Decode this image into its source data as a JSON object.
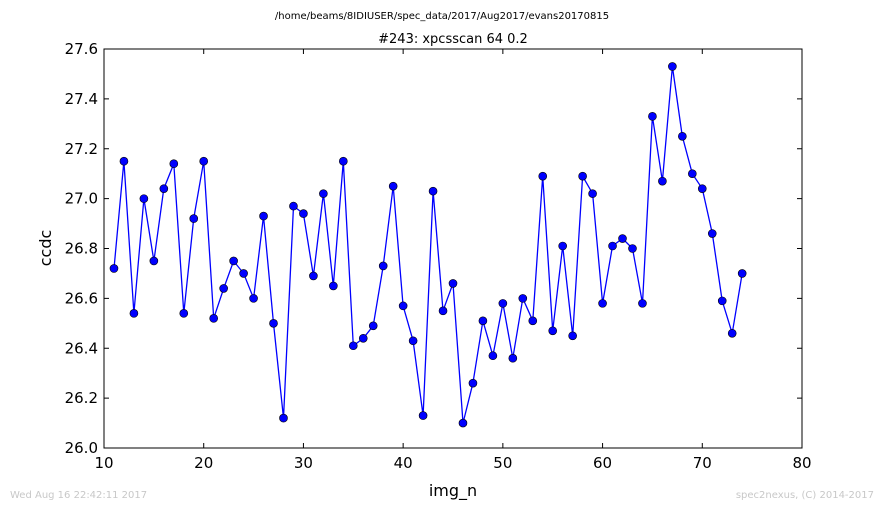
{
  "chart_data": {
    "type": "line",
    "suptitle": "/home/beams/8IDIUSER/spec_data/2017/Aug2017/evans20170815",
    "title": "#243: xpcsscan 64 0.2",
    "xlabel": "img_n",
    "ylabel": "ccdc",
    "xlim": [
      10,
      80
    ],
    "ylim": [
      26.0,
      27.6
    ],
    "xticks": [
      "10",
      "20",
      "30",
      "40",
      "50",
      "60",
      "70",
      "80"
    ],
    "yticks": [
      "26.0",
      "26.2",
      "26.4",
      "26.6",
      "26.8",
      "27.0",
      "27.2",
      "27.4",
      "27.6"
    ],
    "grid": false,
    "marker": "circle",
    "line_color": "#0000ff",
    "x": [
      11,
      12,
      13,
      14,
      15,
      16,
      17,
      18,
      19,
      20,
      21,
      22,
      23,
      24,
      25,
      26,
      27,
      28,
      29,
      30,
      31,
      32,
      33,
      34,
      35,
      36,
      37,
      38,
      39,
      40,
      41,
      42,
      43,
      44,
      45,
      46,
      47,
      48,
      49,
      50,
      51,
      52,
      53,
      54,
      55,
      56,
      57,
      58,
      59,
      60,
      61,
      62,
      63,
      64,
      65,
      66,
      67,
      68,
      69,
      70,
      71,
      72,
      73,
      74
    ],
    "y": [
      26.72,
      27.15,
      26.54,
      27.0,
      26.75,
      27.04,
      27.14,
      26.54,
      26.92,
      27.15,
      26.52,
      26.64,
      26.75,
      26.7,
      26.6,
      26.93,
      26.5,
      26.12,
      26.97,
      26.94,
      26.69,
      27.02,
      26.65,
      27.15,
      26.41,
      26.44,
      26.49,
      26.73,
      27.05,
      26.57,
      26.43,
      26.13,
      27.03,
      26.55,
      26.66,
      26.1,
      26.26,
      26.51,
      26.37,
      26.58,
      26.36,
      26.6,
      26.51,
      27.09,
      26.47,
      26.81,
      26.45,
      27.09,
      27.02,
      26.58,
      26.81,
      26.84,
      26.8,
      26.58,
      27.33,
      27.07,
      27.53,
      27.25,
      27.1,
      27.04,
      26.86,
      26.59,
      26.46,
      26.7
    ]
  },
  "footer": {
    "left": "Wed Aug 16 22:42:11 2017",
    "right": "spec2nexus, (C) 2014-2017"
  }
}
